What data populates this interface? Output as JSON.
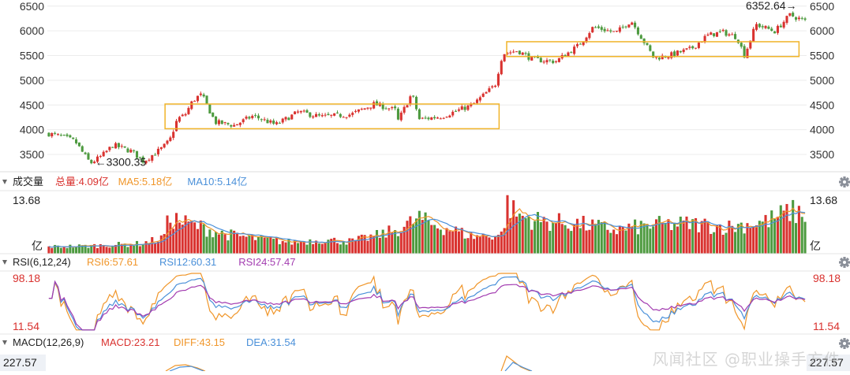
{
  "chart_data": [
    {
      "type": "candlestick",
      "name": "price",
      "ylim": [
        3150,
        6560
      ],
      "yticks": [
        3500,
        4000,
        4500,
        5000,
        5500,
        6000,
        6500
      ],
      "ytick_labels": [
        "3500",
        "4000",
        "4500",
        "5000",
        "5500",
        "6000",
        "6500"
      ],
      "anchors": [
        [
          0,
          3920
        ],
        [
          0.02,
          3850
        ],
        [
          0.035,
          3760
        ],
        [
          0.045,
          3530
        ],
        [
          0.055,
          3320
        ],
        [
          0.07,
          3470
        ],
        [
          0.085,
          3690
        ],
        [
          0.11,
          3560
        ],
        [
          0.125,
          3360
        ],
        [
          0.15,
          3630
        ],
        [
          0.16,
          3790
        ],
        [
          0.17,
          4220
        ],
        [
          0.18,
          4300
        ],
        [
          0.19,
          4580
        ],
        [
          0.2,
          4710
        ],
        [
          0.205,
          4620
        ],
        [
          0.22,
          4150
        ],
        [
          0.245,
          4090
        ],
        [
          0.27,
          4280
        ],
        [
          0.3,
          4100
        ],
        [
          0.33,
          4360
        ],
        [
          0.36,
          4260
        ],
        [
          0.4,
          4310
        ],
        [
          0.43,
          4520
        ],
        [
          0.46,
          4390
        ],
        [
          0.44,
          4420
        ],
        [
          0.455,
          3980
        ],
        [
          0.48,
          4730
        ],
        [
          0.49,
          4210
        ],
        [
          0.52,
          4270
        ],
        [
          0.56,
          4500
        ],
        [
          0.59,
          4900
        ],
        [
          0.6,
          5540
        ],
        [
          0.62,
          5600
        ],
        [
          0.64,
          5420
        ],
        [
          0.67,
          5380
        ],
        [
          0.7,
          5700
        ],
        [
          0.72,
          6080
        ],
        [
          0.75,
          5960
        ],
        [
          0.77,
          6210
        ],
        [
          0.8,
          5450
        ],
        [
          0.82,
          5500
        ],
        [
          0.85,
          5640
        ],
        [
          0.87,
          5900
        ],
        [
          0.89,
          5980
        ],
        [
          0.91,
          5870
        ],
        [
          0.92,
          5500
        ],
        [
          0.935,
          6130
        ],
        [
          0.96,
          5990
        ],
        [
          0.98,
          6320
        ],
        [
          1,
          6200
        ]
      ],
      "annotations": [
        {
          "label": "←3300.35",
          "value": 3300.35,
          "pos": 0.055
        },
        {
          "label": "6352.64→",
          "value": 6352.64,
          "pos": 0.985
        }
      ],
      "boxes": [
        {
          "from": 0.155,
          "to": 0.595,
          "low": 4020,
          "high": 4520
        },
        {
          "from": 0.605,
          "to": 0.99,
          "low": 5480,
          "high": 5780
        }
      ]
    },
    {
      "type": "bar",
      "name": "volume",
      "title": "成交量",
      "legend": [
        {
          "label": "总量:4.09亿",
          "color": "#d9322f"
        },
        {
          "label": "MA5:5.18亿",
          "color": "#f0962a"
        },
        {
          "label": "MA10:5.14亿",
          "color": "#4a90d9"
        }
      ],
      "ymax": 13.68,
      "top_label": "13.68",
      "unit_label": "亿",
      "anchors": [
        [
          0,
          1.8
        ],
        [
          0.05,
          2.0
        ],
        [
          0.12,
          2.6
        ],
        [
          0.15,
          4.0
        ],
        [
          0.16,
          9.5
        ],
        [
          0.18,
          8.0
        ],
        [
          0.2,
          7.0
        ],
        [
          0.23,
          5.2
        ],
        [
          0.28,
          3.8
        ],
        [
          0.32,
          3.0
        ],
        [
          0.36,
          3.6
        ],
        [
          0.4,
          3.2
        ],
        [
          0.44,
          5.0
        ],
        [
          0.47,
          7.0
        ],
        [
          0.49,
          9.4
        ],
        [
          0.5,
          8.0
        ],
        [
          0.53,
          6.5
        ],
        [
          0.56,
          4.5
        ],
        [
          0.6,
          5.0
        ],
        [
          0.605,
          13.0
        ],
        [
          0.62,
          10.0
        ],
        [
          0.65,
          8.5
        ],
        [
          0.7,
          7.8
        ],
        [
          0.75,
          6.2
        ],
        [
          0.8,
          7.5
        ],
        [
          0.85,
          7.8
        ],
        [
          0.9,
          7.0
        ],
        [
          0.95,
          8.5
        ],
        [
          0.98,
          11.0
        ],
        [
          1,
          10.2
        ]
      ]
    },
    {
      "type": "line",
      "name": "rsi",
      "title": "RSI(6,12,24)",
      "legend": [
        {
          "label": "RSI6:57.61",
          "color": "#f0962a"
        },
        {
          "label": "RSI12:60.31",
          "color": "#4a90d9"
        },
        {
          "label": "RSI24:57.47",
          "color": "#a23bb0"
        }
      ],
      "ylim": [
        11.54,
        98.18
      ],
      "top_label": "98.18",
      "bottom_label": "11.54"
    },
    {
      "type": "line",
      "name": "macd",
      "title": "MACD(12,26,9)",
      "legend": [
        {
          "label": "MACD:23.21",
          "color": "#d9322f"
        },
        {
          "label": "DIFF:43.15",
          "color": "#f0962a"
        },
        {
          "label": "DEA:31.54",
          "color": "#4a90d9"
        }
      ],
      "top_label": "227.57"
    }
  ],
  "watermark": "风闻社区 @职业操手方件",
  "colors": {
    "up": "#d9322f",
    "down": "#4d9a3f",
    "box": "#f0b429",
    "grid": "#ececec",
    "axis": "#555555",
    "panel_bg": "#f4f5f7",
    "label_bg": "#eef1f6"
  }
}
